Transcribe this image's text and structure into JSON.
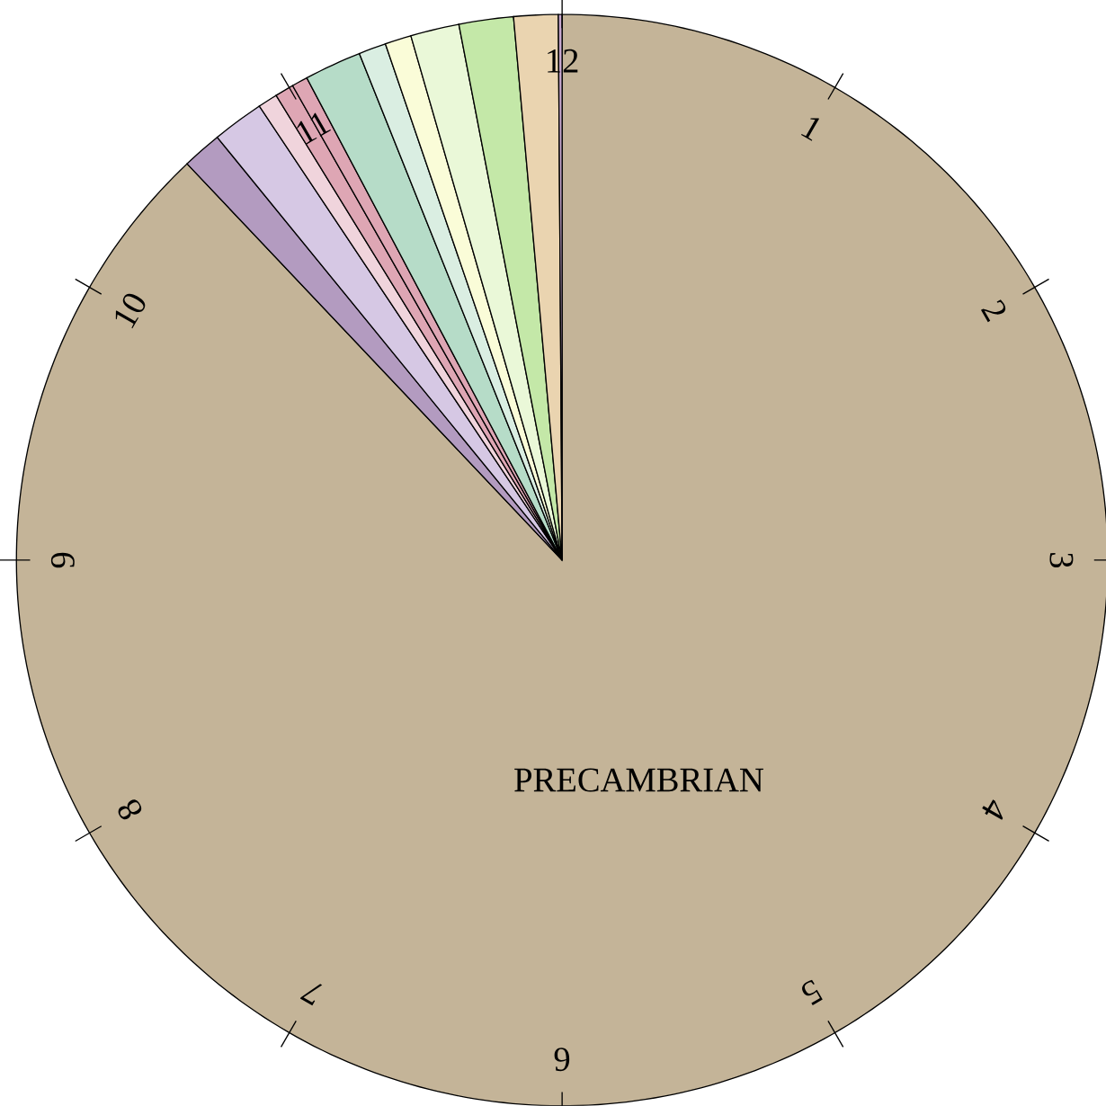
{
  "chart_data": {
    "type": "pie",
    "categories": [
      "PRECAMBRIAN",
      null,
      null,
      null,
      null,
      null,
      null,
      null,
      null,
      null,
      null,
      null,
      null
    ],
    "values": [
      87.94,
      1.17,
      1.53,
      0.58,
      0.56,
      0.47,
      1.69,
      0.81,
      0.78,
      1.44,
      1.61,
      1.31,
      0.11
    ],
    "colors": [
      "#c4b498",
      "#b39bc0",
      "#d6c8e4",
      "#f0d4dc",
      "#dea6b4",
      "#dea6b4",
      "#b6dcc8",
      "#daeee2",
      "#fafcd8",
      "#eaf8d8",
      "#c4e8a8",
      "#ead4b0",
      "#c8a8d0"
    ],
    "annotations": [
      "1",
      "2",
      "3",
      "4",
      "5",
      "6",
      "7",
      "8",
      "9",
      "10",
      "11",
      "12"
    ]
  }
}
